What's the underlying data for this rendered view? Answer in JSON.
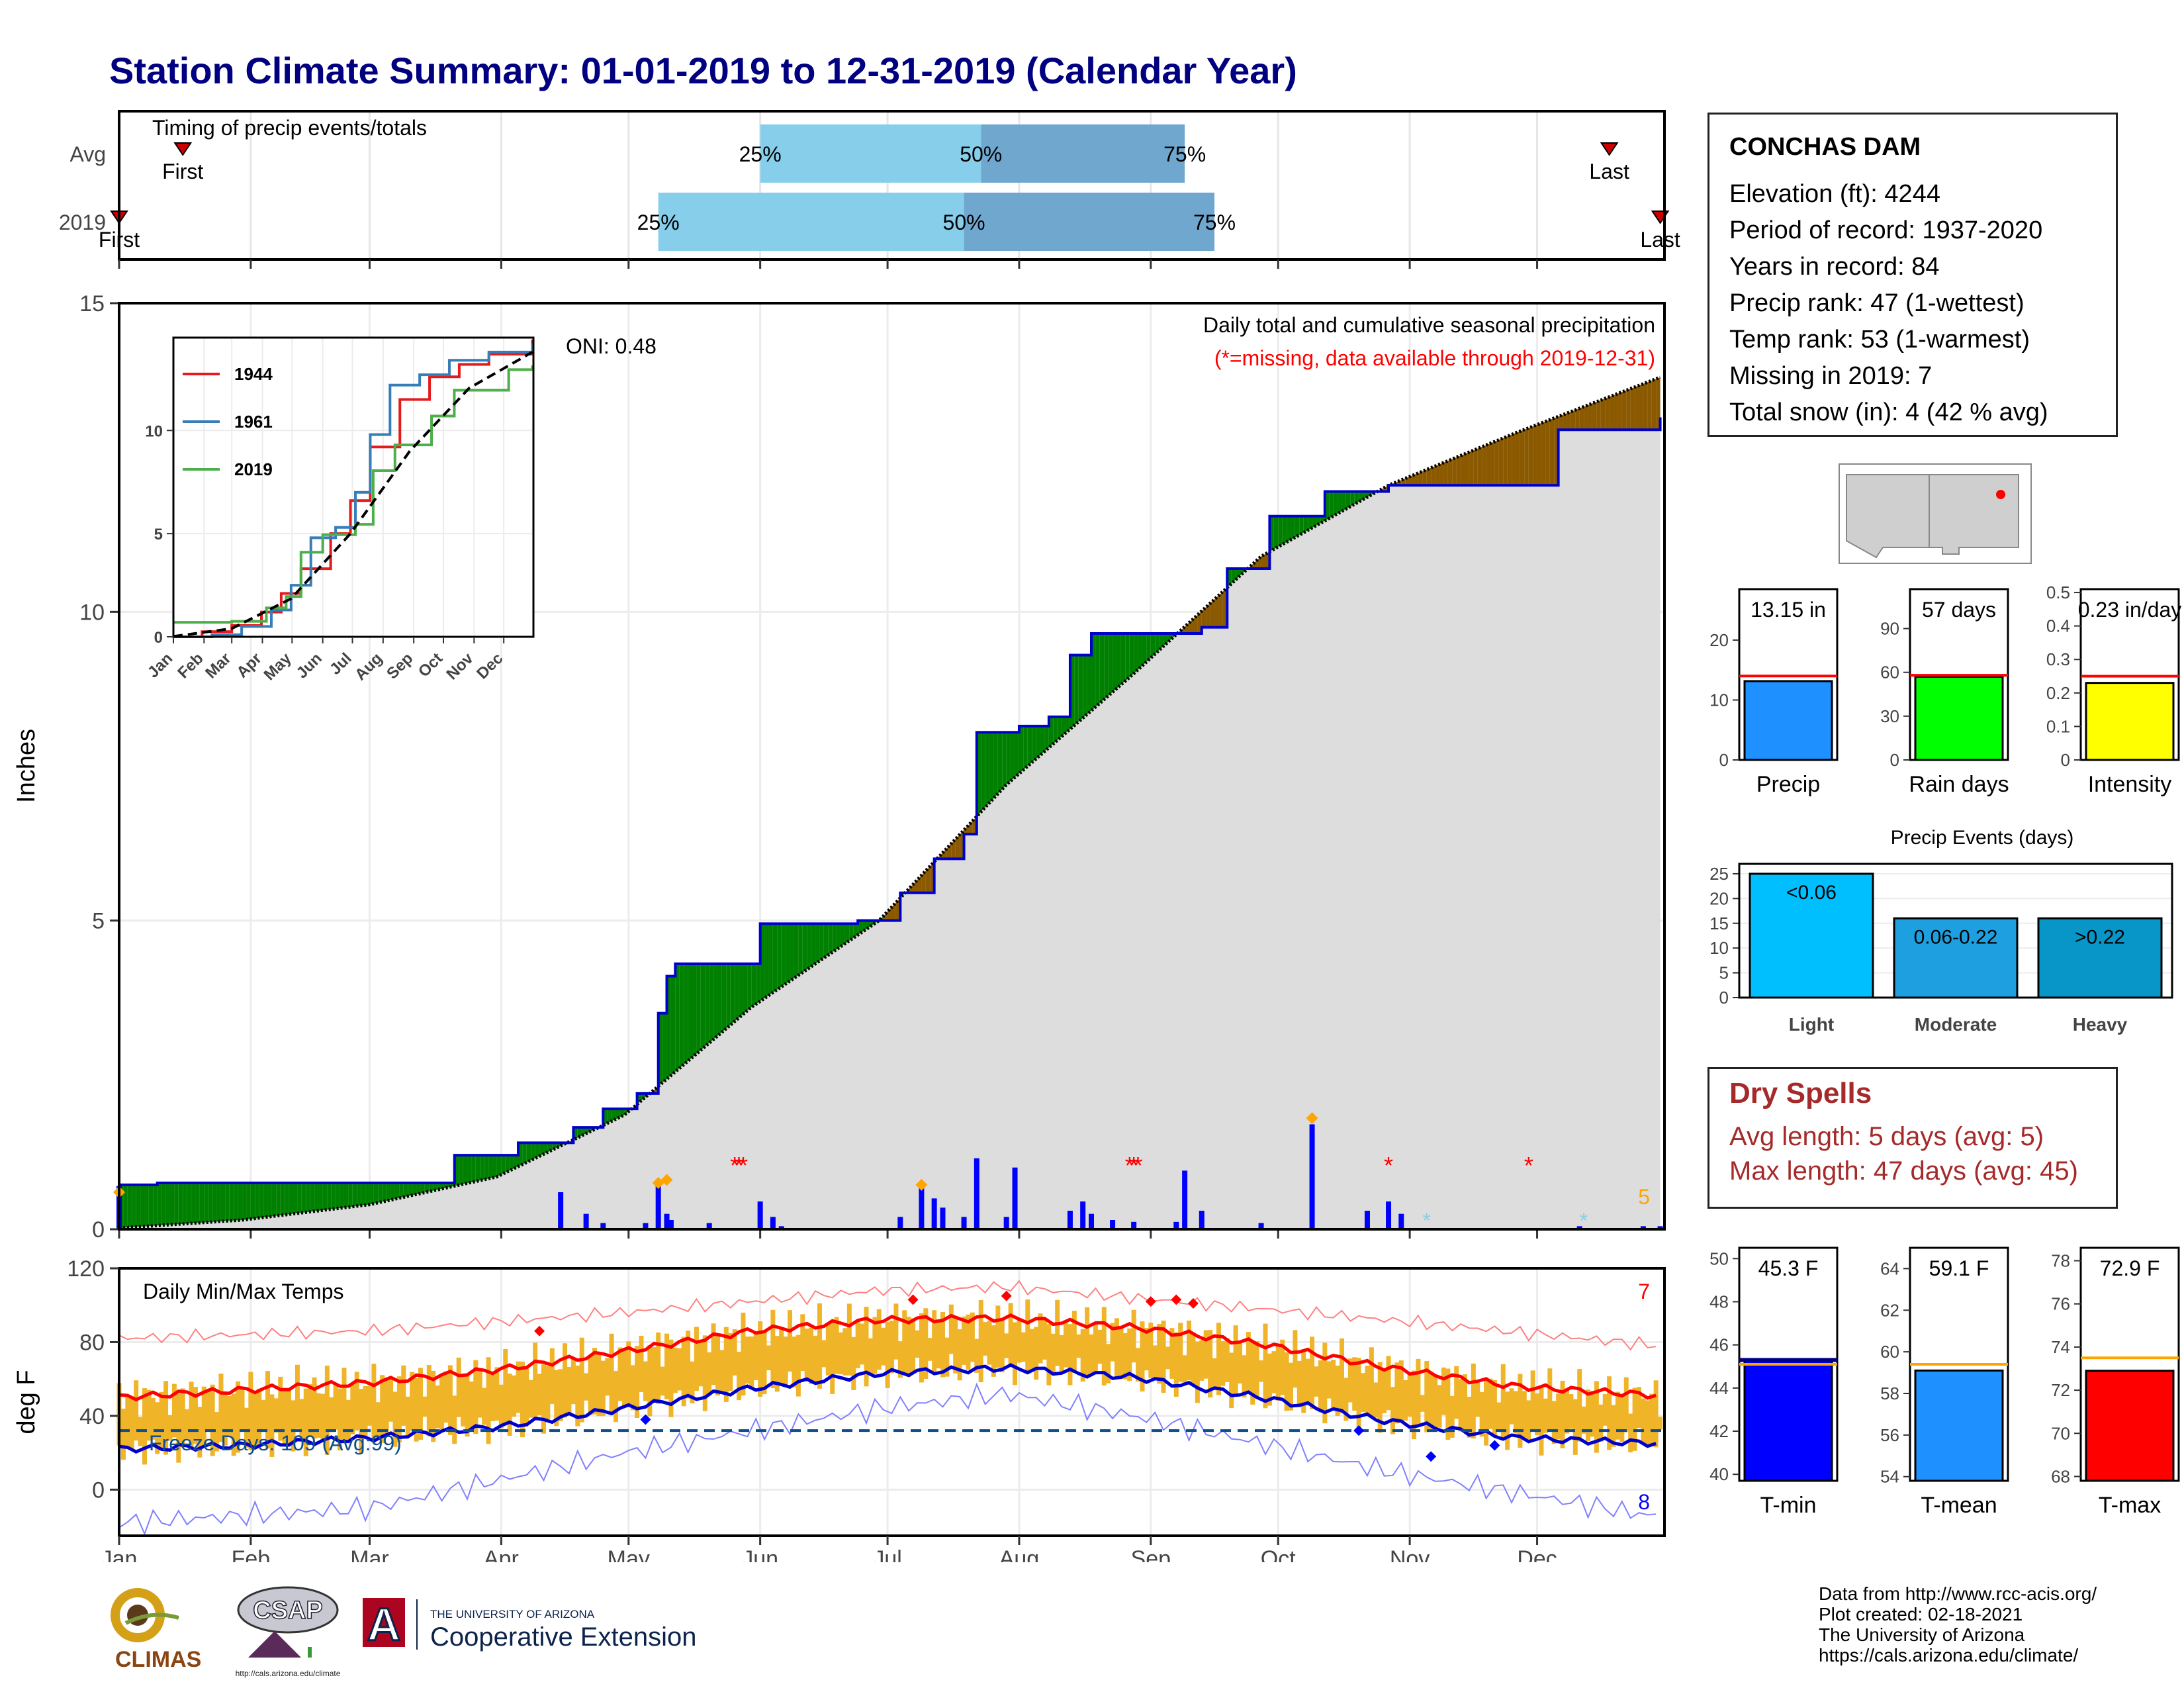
{
  "title": "Station Climate Summary: 01-01-2019 to 12-31-2019 (Calendar Year)",
  "station": {
    "name": "CONCHAS DAM",
    "rows": [
      "Elevation (ft): 4244",
      "Period of record: 1937-2020",
      "Years in record: 84",
      "Precip rank: 47 (1-wettest)",
      "Temp rank: 53 (1-warmest)",
      "Missing in 2019: 7",
      "Total snow (in): 4 (42 % avg)"
    ]
  },
  "dry_spells": {
    "heading": "Dry Spells",
    "avg": "Avg length: 5 days (avg: 5)",
    "max": "Max length: 47 days (avg: 45)"
  },
  "credits": [
    "Data from http://www.rcc-acis.org/",
    "Plot created: 02-18-2021",
    "The University of Arizona",
    "https://cals.arizona.edu/climate/"
  ],
  "logos": {
    "climas": "CLIMAS",
    "csap": "CSAP",
    "csap_url": "http://cals.arizona.edu/climate",
    "ua_small": "THE UNIVERSITY OF ARIZONA",
    "ua_big": "Cooperative Extension",
    "ua_letter": "A"
  },
  "colors": {
    "title": "#000080",
    "cum_fill": "#dddddd",
    "above_avg": "#008000",
    "below_avg": "#8b5a00",
    "obs_line": "#0000cd",
    "avg_line": "#000000",
    "tmax_avg": "#ff0000",
    "tmin_avg": "#0000cd",
    "daily_range": "#f0b429",
    "precip_bar": "#1e90ff",
    "raindays_bar": "#00ff00",
    "intensity_bar": "#ffff00",
    "light": "#00bfff",
    "moderate": "#1ea0e0",
    "heavy": "#0896c8",
    "tmin_bar": "#0000ff",
    "tmean_bar": "#1e90ff",
    "tmax_bar": "#ff0000",
    "dry_text": "#a52a2a"
  },
  "chart_data": [
    {
      "type": "bar",
      "name": "timing",
      "label": "Timing of precip events/totals",
      "rows": [
        {
          "label": "Avg",
          "first_doy": 16,
          "p25_doy": 152,
          "p50_doy": 204,
          "p75_doy": 252,
          "last_doy": 352,
          "first_label": "First",
          "last_label": "Last"
        },
        {
          "label": "2019",
          "first_doy": 1,
          "p25_doy": 128,
          "p50_doy": 200,
          "p75_doy": 259,
          "last_doy": 364,
          "first_label": "First",
          "last_label": "Last"
        }
      ],
      "pct_labels": [
        "25%",
        "50%",
        "75%"
      ]
    },
    {
      "type": "area",
      "name": "cumulative_precip",
      "ylabel": "Inches",
      "ylim": [
        0,
        15
      ],
      "yticks": [
        0,
        5,
        10,
        15
      ],
      "label": "Daily total and cumulative seasonal precipitation",
      "missing_note": "(*=missing, data available through 2019-12-31)",
      "oni": "ONI: 0.48",
      "count_label": "5",
      "months": [
        "Jan",
        "Feb",
        "Mar",
        "Apr",
        "May",
        "Jun",
        "Jul",
        "Aug",
        "Sep",
        "Oct",
        "Nov",
        "Dec"
      ],
      "observed_cum_2019": [
        [
          1,
          0.72
        ],
        [
          10,
          0.75
        ],
        [
          60,
          0.75
        ],
        [
          80,
          1.2
        ],
        [
          95,
          1.4
        ],
        [
          108,
          1.65
        ],
        [
          115,
          1.95
        ],
        [
          123,
          2.2
        ],
        [
          128,
          3.5
        ],
        [
          130,
          4.1
        ],
        [
          132,
          4.3
        ],
        [
          152,
          4.95
        ],
        [
          175,
          5.0
        ],
        [
          185,
          5.45
        ],
        [
          193,
          6.0
        ],
        [
          200,
          6.4
        ],
        [
          203,
          8.05
        ],
        [
          213,
          8.15
        ],
        [
          220,
          8.3
        ],
        [
          225,
          9.3
        ],
        [
          230,
          9.65
        ],
        [
          250,
          9.65
        ],
        [
          256,
          9.75
        ],
        [
          262,
          10.7
        ],
        [
          272,
          11.55
        ],
        [
          285,
          11.95
        ],
        [
          300,
          12.05
        ],
        [
          340,
          12.95
        ],
        [
          364,
          13.15
        ]
      ],
      "avg_cum": [
        [
          1,
          0.02
        ],
        [
          30,
          0.15
        ],
        [
          60,
          0.4
        ],
        [
          90,
          0.85
        ],
        [
          120,
          1.85
        ],
        [
          150,
          3.6
        ],
        [
          180,
          5.0
        ],
        [
          210,
          7.2
        ],
        [
          240,
          9.0
        ],
        [
          270,
          10.9
        ],
        [
          300,
          12.05
        ],
        [
          330,
          12.9
        ],
        [
          364,
          13.8
        ]
      ],
      "daily_bars": [
        [
          1,
          0.7
        ],
        [
          105,
          0.6
        ],
        [
          111,
          0.25
        ],
        [
          115,
          0.1
        ],
        [
          125,
          0.1
        ],
        [
          128,
          0.75
        ],
        [
          130,
          0.25
        ],
        [
          131,
          0.15
        ],
        [
          140,
          0.1
        ],
        [
          152,
          0.45
        ],
        [
          155,
          0.2
        ],
        [
          157,
          0.05
        ],
        [
          175,
          0.02
        ],
        [
          185,
          0.2
        ],
        [
          190,
          0.7
        ],
        [
          193,
          0.5
        ],
        [
          195,
          0.35
        ],
        [
          200,
          0.2
        ],
        [
          203,
          1.15
        ],
        [
          210,
          0.2
        ],
        [
          212,
          1.0
        ],
        [
          225,
          0.3
        ],
        [
          228,
          0.45
        ],
        [
          230,
          0.25
        ],
        [
          235,
          0.15
        ],
        [
          240,
          0.12
        ],
        [
          250,
          0.12
        ],
        [
          252,
          0.95
        ],
        [
          256,
          0.3
        ],
        [
          270,
          0.1
        ],
        [
          282,
          1.7
        ],
        [
          295,
          0.3
        ],
        [
          300,
          0.45
        ],
        [
          303,
          0.25
        ],
        [
          345,
          0.05
        ],
        [
          360,
          0.05
        ],
        [
          364,
          0.05
        ]
      ],
      "snow_markers": [
        [
          1,
          0.6
        ],
        [
          128,
          0.75
        ],
        [
          130,
          0.8
        ],
        [
          190,
          0.72
        ],
        [
          282,
          1.8
        ]
      ],
      "missing_markers_doy": [
        146,
        147,
        148,
        239,
        240,
        241,
        300,
        333
      ],
      "freeze_markers_doy": [
        309,
        346
      ],
      "inset": {
        "type": "line",
        "ylim": [
          0,
          14.5
        ],
        "yticks": [
          0,
          5,
          10
        ],
        "months": [
          "Jan",
          "Feb",
          "Mar",
          "Apr",
          "May",
          "Jun",
          "Jul",
          "Aug",
          "Sep",
          "Oct",
          "Nov",
          "Dec"
        ],
        "series": [
          {
            "name": "1944",
            "color": "#e41a1c",
            "values": [
              [
                1,
                0.0
              ],
              [
                30,
                0.25
              ],
              [
                60,
                0.55
              ],
              [
                90,
                1.2
              ],
              [
                110,
                2.1
              ],
              [
                130,
                3.3
              ],
              [
                160,
                5.0
              ],
              [
                180,
                6.6
              ],
              [
                200,
                9.2
              ],
              [
                230,
                11.5
              ],
              [
                260,
                12.6
              ],
              [
                290,
                13.2
              ],
              [
                320,
                13.7
              ],
              [
                364,
                14.4
              ]
            ]
          },
          {
            "name": "1961",
            "color": "#377eb8",
            "values": [
              [
                1,
                0.0
              ],
              [
                40,
                0.1
              ],
              [
                70,
                0.5
              ],
              [
                100,
                1.3
              ],
              [
                120,
                2.5
              ],
              [
                140,
                4.8
              ],
              [
                165,
                5.3
              ],
              [
                185,
                7.0
              ],
              [
                200,
                9.8
              ],
              [
                220,
                12.2
              ],
              [
                250,
                12.7
              ],
              [
                280,
                13.4
              ],
              [
                320,
                13.8
              ],
              [
                364,
                14.2
              ]
            ]
          },
          {
            "name": "2019",
            "color": "#4daf4a",
            "values": [
              [
                1,
                0.7
              ],
              [
                60,
                0.75
              ],
              [
                95,
                1.4
              ],
              [
                115,
                1.95
              ],
              [
                130,
                4.1
              ],
              [
                152,
                4.95
              ],
              [
                185,
                5.45
              ],
              [
                203,
                8.05
              ],
              [
                225,
                9.3
              ],
              [
                262,
                10.7
              ],
              [
                285,
                11.95
              ],
              [
                340,
                12.95
              ],
              [
                364,
                13.15
              ]
            ]
          }
        ],
        "avg_series": [
          [
            1,
            0.02
          ],
          [
            60,
            0.4
          ],
          [
            120,
            1.85
          ],
          [
            180,
            5.0
          ],
          [
            240,
            9.0
          ],
          [
            300,
            12.05
          ],
          [
            364,
            13.8
          ]
        ]
      }
    },
    {
      "type": "line",
      "name": "daily_temps",
      "label": "Daily Min/Max Temps",
      "ylabel": "deg F",
      "ylim": [
        -25,
        120
      ],
      "yticks": [
        0,
        40,
        80,
        120
      ],
      "months": [
        "Jan",
        "Feb",
        "Mar",
        "Apr",
        "May",
        "Jun",
        "Jul",
        "Aug",
        "Sep",
        "Oct",
        "Nov",
        "Dec"
      ],
      "freeze_line": 32,
      "freeze_label": "Freeze Days: 109 (Avg:99)",
      "record_high_count": "7",
      "record_low_count": "8",
      "series": [
        {
          "name": "Avg max",
          "values": [
            [
              1,
              50
            ],
            [
              30,
              54
            ],
            [
              60,
              58
            ],
            [
              90,
              65
            ],
            [
              120,
              75
            ],
            [
              150,
              86
            ],
            [
              180,
              92
            ],
            [
              210,
              93
            ],
            [
              240,
              88
            ],
            [
              270,
              79
            ],
            [
              300,
              66
            ],
            [
              330,
              56
            ],
            [
              364,
              51
            ]
          ]
        },
        {
          "name": "Avg min",
          "values": [
            [
              1,
              22
            ],
            [
              30,
              24
            ],
            [
              60,
              28
            ],
            [
              90,
              34
            ],
            [
              120,
              44
            ],
            [
              150,
              55
            ],
            [
              180,
              63
            ],
            [
              210,
              66
            ],
            [
              240,
              61
            ],
            [
              270,
              50
            ],
            [
              300,
              37
            ],
            [
              330,
              28
            ],
            [
              364,
              25
            ]
          ]
        },
        {
          "name": "Record max",
          "values": [
            [
              1,
              82
            ],
            [
              60,
              86
            ],
            [
              120,
              96
            ],
            [
              180,
              108
            ],
            [
              210,
              110
            ],
            [
              240,
              104
            ],
            [
              300,
              92
            ],
            [
              364,
              78
            ]
          ]
        },
        {
          "name": "Record min",
          "values": [
            [
              1,
              -18
            ],
            [
              60,
              -10
            ],
            [
              120,
              20
            ],
            [
              180,
              44
            ],
            [
              210,
              52
            ],
            [
              240,
              40
            ],
            [
              300,
              10
            ],
            [
              364,
              -15
            ]
          ]
        }
      ],
      "record_highs_doy": [
        [
          100,
          86
        ],
        [
          188,
          103
        ],
        [
          210,
          105
        ],
        [
          244,
          102
        ],
        [
          250,
          103
        ],
        [
          254,
          101
        ]
      ],
      "record_lows_doy": [
        [
          125,
          38
        ],
        [
          293,
          32
        ],
        [
          310,
          18
        ],
        [
          325,
          24
        ]
      ]
    },
    {
      "type": "bar",
      "name": "precip_totals",
      "categories": [
        "Precip",
        "Rain days",
        "Intensity"
      ],
      "values": [
        13.15,
        57,
        0.23
      ],
      "value_labels": [
        "13.15 in",
        "57 days",
        "0.23 in/day"
      ],
      "averages": [
        14.0,
        58,
        0.25
      ],
      "axes": [
        {
          "ylim": [
            0,
            28.5
          ],
          "yticks": [
            0,
            10,
            20
          ]
        },
        {
          "ylim": [
            0,
            117
          ],
          "yticks": [
            0,
            30,
            60,
            90
          ]
        },
        {
          "ylim": [
            0,
            0.51
          ],
          "yticks": [
            0.0,
            0.1,
            0.2,
            0.3,
            0.4,
            0.5
          ]
        }
      ]
    },
    {
      "type": "bar",
      "name": "precip_events",
      "title": "Precip Events (days)",
      "categories": [
        "Light",
        "Moderate",
        "Heavy"
      ],
      "values": [
        25,
        16,
        16
      ],
      "bar_labels": [
        "<0.06",
        "0.06-0.22",
        ">0.22"
      ],
      "ylim": [
        0,
        27
      ],
      "yticks": [
        0,
        5,
        10,
        15,
        20,
        25
      ]
    },
    {
      "type": "bar",
      "name": "temp_summary",
      "categories": [
        "T-min",
        "T-mean",
        "T-max"
      ],
      "values": [
        45.3,
        59.1,
        72.9
      ],
      "value_labels": [
        "45.3 F",
        "59.1 F",
        "72.9 F"
      ],
      "averages": [
        45.1,
        59.4,
        73.5
      ],
      "axes": [
        {
          "ylim": [
            39.7,
            50.5
          ],
          "yticks": [
            40,
            42,
            44,
            46,
            48,
            50
          ]
        },
        {
          "ylim": [
            53.8,
            65.0
          ],
          "yticks": [
            54,
            56,
            58,
            60,
            62,
            64
          ]
        },
        {
          "ylim": [
            67.8,
            78.6
          ],
          "yticks": [
            68,
            70,
            72,
            74,
            76,
            78
          ]
        }
      ]
    }
  ]
}
